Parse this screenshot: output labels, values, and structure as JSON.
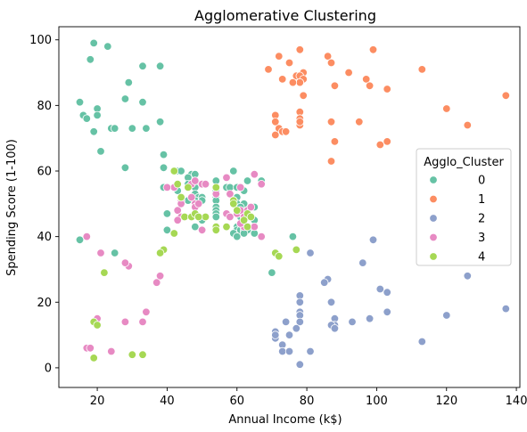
{
  "chart_data": {
    "type": "scatter",
    "title": "Agglomerative Clustering",
    "xlabel": "Annual Income (k$)",
    "ylabel": "Spending Score (1-100)",
    "xlim": [
      9,
      141
    ],
    "ylim": [
      -6,
      104
    ],
    "xticks": [
      20,
      40,
      60,
      80,
      100,
      120,
      140
    ],
    "yticks": [
      0,
      20,
      40,
      60,
      80,
      100
    ],
    "grid": false,
    "legend": {
      "title": "Agglo_Cluster",
      "placement": "right"
    },
    "series": [
      {
        "name": "0",
        "color": "#66c2a5",
        "points": [
          [
            19,
            99
          ],
          [
            23,
            98
          ],
          [
            18,
            94
          ],
          [
            33,
            92
          ],
          [
            38,
            92
          ],
          [
            29,
            87
          ],
          [
            28,
            82
          ],
          [
            15,
            81
          ],
          [
            33,
            81
          ],
          [
            20,
            79
          ],
          [
            20,
            77
          ],
          [
            16,
            77
          ],
          [
            17,
            76
          ],
          [
            38,
            75
          ],
          [
            24,
            73
          ],
          [
            25,
            73
          ],
          [
            30,
            73
          ],
          [
            34,
            73
          ],
          [
            19,
            72
          ],
          [
            21,
            66
          ],
          [
            39,
            65
          ],
          [
            28,
            61
          ],
          [
            39,
            61
          ],
          [
            43,
            60
          ],
          [
            44,
            60
          ],
          [
            59,
            60
          ],
          [
            47,
            59
          ],
          [
            48,
            59
          ],
          [
            46,
            58
          ],
          [
            67,
            57
          ],
          [
            63,
            57
          ],
          [
            54,
            57
          ],
          [
            46,
            56
          ],
          [
            49,
            56
          ],
          [
            54,
            55
          ],
          [
            57,
            55
          ],
          [
            58,
            55
          ],
          [
            60,
            55
          ],
          [
            48,
            55
          ],
          [
            39,
            55
          ],
          [
            43,
            54
          ],
          [
            54,
            54
          ],
          [
            62,
            54
          ],
          [
            48,
            53
          ],
          [
            49,
            52
          ],
          [
            50,
            52
          ],
          [
            54,
            52
          ],
          [
            60,
            52
          ],
          [
            46,
            51
          ],
          [
            48,
            51
          ],
          [
            50,
            51
          ],
          [
            54,
            51
          ],
          [
            60,
            50
          ],
          [
            62,
            50
          ],
          [
            54,
            49
          ],
          [
            61,
            49
          ],
          [
            65,
            49
          ],
          [
            54,
            48
          ],
          [
            63,
            48
          ],
          [
            40,
            47
          ],
          [
            54,
            47
          ],
          [
            62,
            47
          ],
          [
            54,
            46
          ],
          [
            61,
            46
          ],
          [
            63,
            46
          ],
          [
            50,
            45
          ],
          [
            65,
            45
          ],
          [
            48,
            43
          ],
          [
            60,
            43
          ],
          [
            40,
            42
          ],
          [
            60,
            42
          ],
          [
            61,
            42
          ],
          [
            62,
            42
          ],
          [
            63,
            42
          ],
          [
            59,
            41
          ],
          [
            60,
            40
          ],
          [
            62,
            41
          ],
          [
            65,
            41
          ],
          [
            76,
            40
          ],
          [
            15,
            39
          ],
          [
            25,
            35
          ],
          [
            70,
            29
          ]
        ]
      },
      {
        "name": "1",
        "color": "#fc8d62",
        "points": [
          [
            72,
            95
          ],
          [
            86,
            95
          ],
          [
            78,
            97
          ],
          [
            99,
            97
          ],
          [
            69,
            91
          ],
          [
            75,
            93
          ],
          [
            87,
            93
          ],
          [
            79,
            90
          ],
          [
            113,
            91
          ],
          [
            77,
            89
          ],
          [
            78,
            89
          ],
          [
            79,
            88
          ],
          [
            73,
            88
          ],
          [
            97,
            88
          ],
          [
            78,
            87
          ],
          [
            76,
            87
          ],
          [
            92,
            90
          ],
          [
            98,
            86
          ],
          [
            103,
            85
          ],
          [
            88,
            86
          ],
          [
            79,
            83
          ],
          [
            137,
            83
          ],
          [
            78,
            78
          ],
          [
            120,
            79
          ],
          [
            71,
            77
          ],
          [
            95,
            75
          ],
          [
            78,
            76
          ],
          [
            72,
            73
          ],
          [
            73,
            72
          ],
          [
            71,
            71
          ],
          [
            87,
            75
          ],
          [
            78,
            74
          ],
          [
            126,
            74
          ],
          [
            88,
            69
          ],
          [
            103,
            69
          ],
          [
            101,
            68
          ],
          [
            87,
            63
          ],
          [
            78,
            75
          ],
          [
            74,
            72
          ],
          [
            71,
            75
          ]
        ]
      },
      {
        "name": "2",
        "color": "#8da0cb",
        "points": [
          [
            99,
            39
          ],
          [
            81,
            35
          ],
          [
            96,
            32
          ],
          [
            126,
            28
          ],
          [
            86,
            27
          ],
          [
            101,
            24
          ],
          [
            103,
            23
          ],
          [
            78,
            22
          ],
          [
            78,
            20
          ],
          [
            87,
            20
          ],
          [
            78,
            17
          ],
          [
            103,
            17
          ],
          [
            120,
            16
          ],
          [
            78,
            16
          ],
          [
            98,
            15
          ],
          [
            88,
            15
          ],
          [
            78,
            14
          ],
          [
            93,
            14
          ],
          [
            74,
            14
          ],
          [
            88,
            13
          ],
          [
            87,
            13
          ],
          [
            77,
            12
          ],
          [
            71,
            11
          ],
          [
            75,
            10
          ],
          [
            71,
            9
          ],
          [
            85,
            26
          ],
          [
            73,
            7
          ],
          [
            137,
            18
          ],
          [
            113,
            8
          ],
          [
            81,
            5
          ],
          [
            73,
            5
          ],
          [
            75,
            5
          ],
          [
            78,
            1
          ],
          [
            71,
            10
          ],
          [
            88,
            12
          ]
        ]
      },
      {
        "name": "3",
        "color": "#e78ac3",
        "points": [
          [
            65,
            59
          ],
          [
            42,
            55
          ],
          [
            47,
            56
          ],
          [
            48,
            57
          ],
          [
            50,
            56
          ],
          [
            51,
            56
          ],
          [
            57,
            58
          ],
          [
            58,
            53
          ],
          [
            61,
            55
          ],
          [
            67,
            56
          ],
          [
            44,
            51
          ],
          [
            47,
            52
          ],
          [
            48,
            50
          ],
          [
            48,
            49
          ],
          [
            49,
            50
          ],
          [
            43,
            48
          ],
          [
            44,
            50
          ],
          [
            54,
            53
          ],
          [
            59,
            51
          ],
          [
            57,
            47
          ],
          [
            60,
            47
          ],
          [
            61,
            48
          ],
          [
            62,
            46
          ],
          [
            63,
            48
          ],
          [
            64,
            49
          ],
          [
            44,
            46
          ],
          [
            43,
            45
          ],
          [
            58,
            46
          ],
          [
            62,
            43
          ],
          [
            65,
            43
          ],
          [
            50,
            42
          ],
          [
            40,
            55
          ],
          [
            17,
            40
          ],
          [
            21,
            35
          ],
          [
            29,
            31
          ],
          [
            28,
            32
          ],
          [
            38,
            28
          ],
          [
            37,
            26
          ],
          [
            34,
            17
          ],
          [
            20,
            15
          ],
          [
            19,
            14
          ],
          [
            28,
            14
          ],
          [
            33,
            14
          ],
          [
            24,
            5
          ],
          [
            17,
            6
          ],
          [
            18,
            6
          ],
          [
            42,
            41
          ],
          [
            61,
            44
          ],
          [
            67,
            40
          ]
        ]
      },
      {
        "name": "4",
        "color": "#a6d854",
        "points": [
          [
            42,
            60
          ],
          [
            43,
            56
          ],
          [
            46,
            55
          ],
          [
            54,
            55
          ],
          [
            59,
            51
          ],
          [
            59,
            50
          ],
          [
            60,
            48
          ],
          [
            63,
            47
          ],
          [
            64,
            46
          ],
          [
            44,
            52
          ],
          [
            51,
            46
          ],
          [
            45,
            46
          ],
          [
            47,
            46
          ],
          [
            54,
            43
          ],
          [
            57,
            43
          ],
          [
            62,
            45
          ],
          [
            54,
            42
          ],
          [
            42,
            41
          ],
          [
            39,
            36
          ],
          [
            38,
            35
          ],
          [
            71,
            35
          ],
          [
            72,
            34
          ],
          [
            77,
            36
          ],
          [
            22,
            29
          ],
          [
            19,
            14
          ],
          [
            20,
            13
          ],
          [
            30,
            4
          ],
          [
            33,
            4
          ],
          [
            19,
            3
          ],
          [
            48,
            47
          ],
          [
            49,
            46
          ],
          [
            63,
            43
          ]
        ]
      }
    ]
  }
}
